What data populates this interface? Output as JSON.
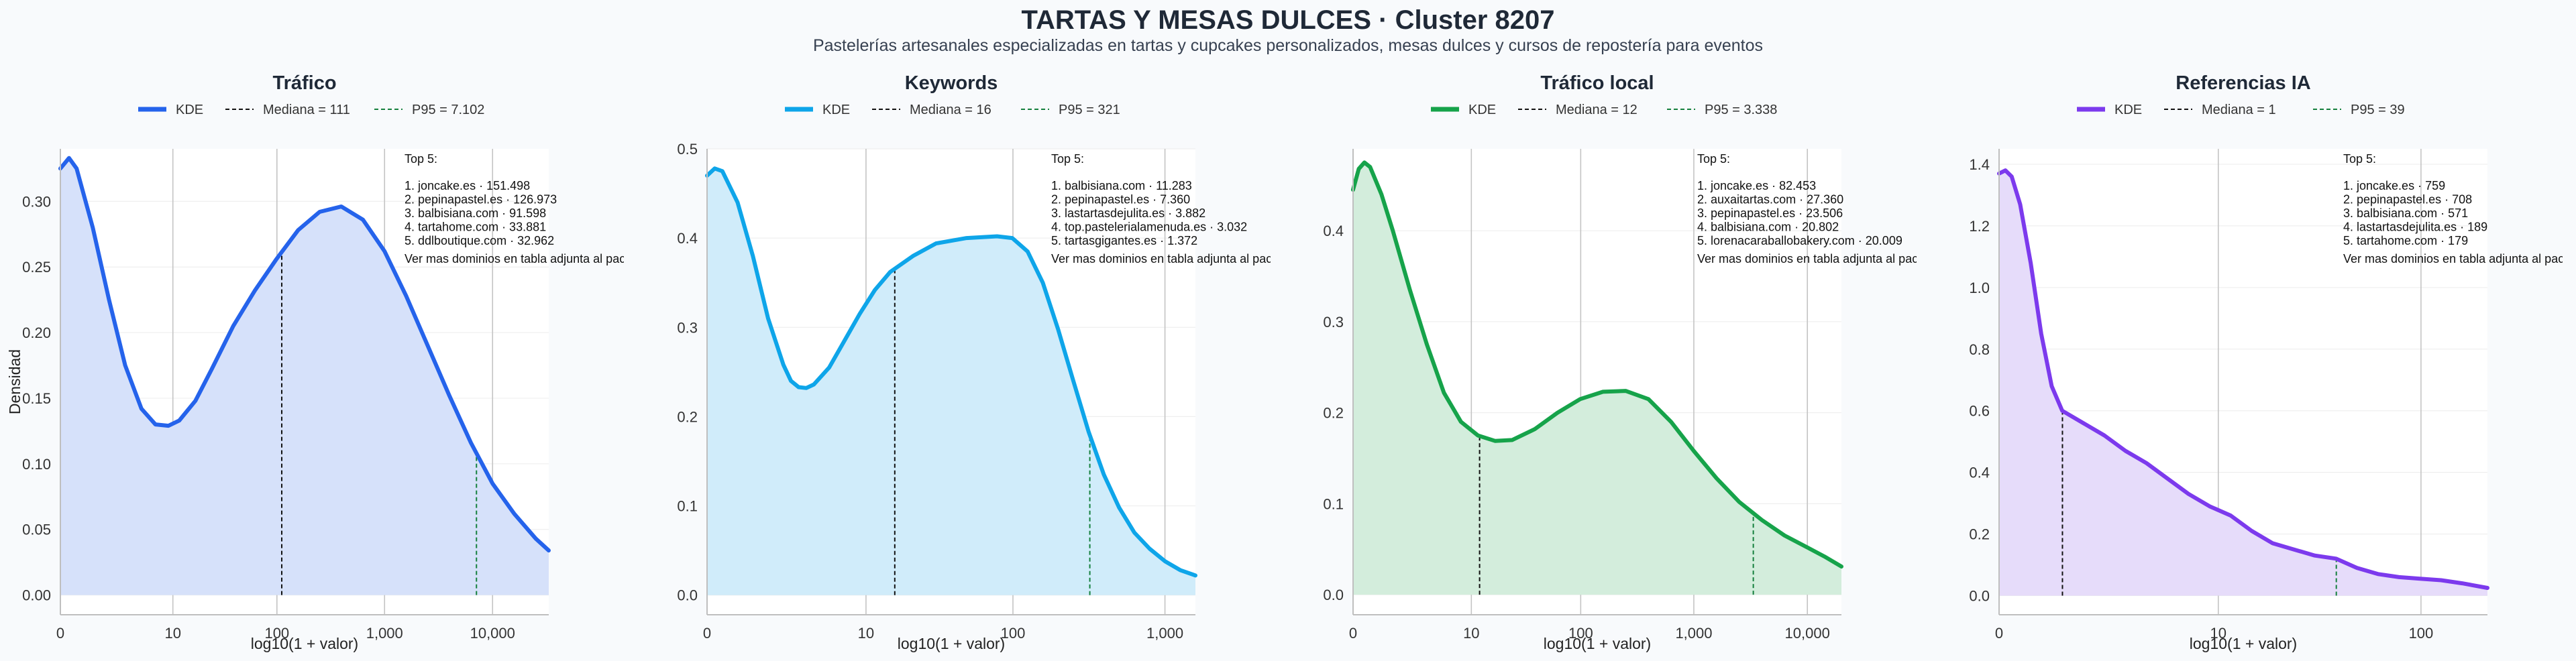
{
  "header": {
    "title": "TARTAS Y MESAS DULCES · Cluster 8207",
    "subtitle": "Pastelerías artesanales especializadas en tartas y cupcakes personalizados, mesas dulces y cursos de repostería para eventos"
  },
  "colors": {
    "page_bg": "#f8fafc",
    "median_line": "#111111",
    "p95_line": "#15803d"
  },
  "shared": {
    "ylabel": "Densidad",
    "xlabel": "log10(1 + valor)",
    "legend_kde": "KDE",
    "top_heading": "Top 5:",
    "footer_note": "Ver mas dominios en tabla adjunta al pack"
  },
  "chart_data": [
    {
      "type": "area",
      "title": "Tráfico",
      "color": "#2563eb",
      "fill": "#d6e1fa",
      "xlabel": "log10(1 + valor)",
      "ylabel": "Densidad",
      "xlim": [
        0,
        4.52
      ],
      "ylim": [
        -0.015,
        0.34
      ],
      "yticks": [
        0.0,
        0.05,
        0.1,
        0.15,
        0.2,
        0.25,
        0.3
      ],
      "ytick_labels": [
        "0.00",
        "0.05",
        "0.10",
        "0.15",
        "0.20",
        "0.25",
        "0.30"
      ],
      "xticks": [
        0,
        1.0414,
        2.0043,
        3.0004,
        4.0
      ],
      "xtick_labels": [
        "0",
        "10",
        "100",
        "1,000",
        "10,000"
      ],
      "median": {
        "label": "Mediana = 111",
        "value": 111,
        "x": 2.049
      },
      "p95": {
        "label": "P95 = 7.102",
        "value": 7102,
        "x": 3.851
      },
      "top5": [
        "1. joncake.es · 151.498",
        "2. pepinapastel.es · 126.973",
        "3. balbisiana.com · 91.598",
        "4. tartahome.com · 33.881",
        "5. ddlboutique.com · 32.962"
      ],
      "kde": [
        [
          0,
          0.325
        ],
        [
          0.08,
          0.333
        ],
        [
          0.15,
          0.325
        ],
        [
          0.3,
          0.28
        ],
        [
          0.45,
          0.225
        ],
        [
          0.6,
          0.175
        ],
        [
          0.75,
          0.142
        ],
        [
          0.88,
          0.13
        ],
        [
          1.0,
          0.129
        ],
        [
          1.1,
          0.133
        ],
        [
          1.25,
          0.148
        ],
        [
          1.4,
          0.172
        ],
        [
          1.6,
          0.205
        ],
        [
          1.8,
          0.232
        ],
        [
          2.0,
          0.256
        ],
        [
          2.2,
          0.278
        ],
        [
          2.4,
          0.292
        ],
        [
          2.6,
          0.296
        ],
        [
          2.8,
          0.286
        ],
        [
          3.0,
          0.262
        ],
        [
          3.2,
          0.228
        ],
        [
          3.4,
          0.19
        ],
        [
          3.6,
          0.152
        ],
        [
          3.8,
          0.116
        ],
        [
          4.0,
          0.085
        ],
        [
          4.2,
          0.062
        ],
        [
          4.4,
          0.043
        ],
        [
          4.52,
          0.034
        ]
      ]
    },
    {
      "type": "area",
      "title": "Keywords",
      "color": "#0ea5e9",
      "fill": "#d0ecfa",
      "xlabel": "log10(1 + valor)",
      "ylabel": "",
      "xlim": [
        0,
        3.2
      ],
      "ylim": [
        -0.022,
        0.5
      ],
      "yticks": [
        0.0,
        0.1,
        0.2,
        0.3,
        0.4,
        0.5
      ],
      "ytick_labels": [
        "0.0",
        "0.1",
        "0.2",
        "0.3",
        "0.4",
        "0.5"
      ],
      "xticks": [
        0,
        1.0414,
        2.0043,
        3.0004
      ],
      "xtick_labels": [
        "0",
        "10",
        "100",
        "1,000"
      ],
      "median": {
        "label": "Mediana = 16",
        "value": 16,
        "x": 1.23
      },
      "p95": {
        "label": "P95 = 321",
        "value": 321,
        "x": 2.508
      },
      "top5": [
        "1. balbisiana.com · 11.283",
        "2. pepinapastel.es · 7.360",
        "3. lastartasdejulita.es · 3.882",
        "4. top.pastelerialamenuda.es · 3.032",
        "5. tartasgigantes.es · 1.372"
      ],
      "kde": [
        [
          0,
          0.47
        ],
        [
          0.05,
          0.478
        ],
        [
          0.1,
          0.475
        ],
        [
          0.2,
          0.44
        ],
        [
          0.3,
          0.38
        ],
        [
          0.4,
          0.31
        ],
        [
          0.5,
          0.258
        ],
        [
          0.55,
          0.24
        ],
        [
          0.6,
          0.233
        ],
        [
          0.65,
          0.232
        ],
        [
          0.7,
          0.236
        ],
        [
          0.8,
          0.255
        ],
        [
          0.9,
          0.285
        ],
        [
          1.0,
          0.315
        ],
        [
          1.1,
          0.342
        ],
        [
          1.2,
          0.362
        ],
        [
          1.35,
          0.38
        ],
        [
          1.5,
          0.394
        ],
        [
          1.7,
          0.4
        ],
        [
          1.9,
          0.402
        ],
        [
          2.0,
          0.4
        ],
        [
          2.1,
          0.385
        ],
        [
          2.2,
          0.35
        ],
        [
          2.3,
          0.298
        ],
        [
          2.4,
          0.24
        ],
        [
          2.5,
          0.183
        ],
        [
          2.6,
          0.135
        ],
        [
          2.7,
          0.098
        ],
        [
          2.8,
          0.07
        ],
        [
          2.9,
          0.052
        ],
        [
          3.0,
          0.038
        ],
        [
          3.1,
          0.028
        ],
        [
          3.2,
          0.022
        ]
      ]
    },
    {
      "type": "area",
      "title": "Tráfico local",
      "color": "#16a34a",
      "fill": "#d3eddc",
      "xlabel": "log10(1 + valor)",
      "ylabel": "",
      "xlim": [
        0,
        4.3
      ],
      "ylim": [
        -0.022,
        0.49
      ],
      "yticks": [
        0.0,
        0.1,
        0.2,
        0.3,
        0.4
      ],
      "ytick_labels": [
        "0.0",
        "0.1",
        "0.2",
        "0.3",
        "0.4"
      ],
      "xticks": [
        0,
        1.0414,
        2.0043,
        3.0004,
        4.0
      ],
      "xtick_labels": [
        "0",
        "10",
        "100",
        "1,000",
        "10,000"
      ],
      "median": {
        "label": "Mediana = 12",
        "value": 12,
        "x": 1.114
      },
      "p95": {
        "label": "P95 = 3.338",
        "value": 3338,
        "x": 3.524
      },
      "top5": [
        "1. joncake.es · 82.453",
        "2. auxaitartas.com · 27.360",
        "3. pepinapastel.es · 23.506",
        "4. balbisiana.com · 20.802",
        "5. lorenacaraballobakery.com · 20.009"
      ],
      "kde": [
        [
          0,
          0.445
        ],
        [
          0.05,
          0.468
        ],
        [
          0.1,
          0.475
        ],
        [
          0.15,
          0.47
        ],
        [
          0.25,
          0.44
        ],
        [
          0.35,
          0.4
        ],
        [
          0.5,
          0.335
        ],
        [
          0.65,
          0.275
        ],
        [
          0.8,
          0.222
        ],
        [
          0.95,
          0.19
        ],
        [
          1.1,
          0.175
        ],
        [
          1.25,
          0.169
        ],
        [
          1.4,
          0.17
        ],
        [
          1.6,
          0.182
        ],
        [
          1.8,
          0.2
        ],
        [
          2.0,
          0.215
        ],
        [
          2.2,
          0.223
        ],
        [
          2.4,
          0.224
        ],
        [
          2.6,
          0.215
        ],
        [
          2.8,
          0.19
        ],
        [
          3.0,
          0.158
        ],
        [
          3.2,
          0.128
        ],
        [
          3.4,
          0.102
        ],
        [
          3.6,
          0.082
        ],
        [
          3.8,
          0.065
        ],
        [
          4.0,
          0.052
        ],
        [
          4.15,
          0.042
        ],
        [
          4.3,
          0.031
        ]
      ]
    },
    {
      "type": "area",
      "title": "Referencias IA",
      "color": "#7c3aed",
      "fill": "#e6dcfa",
      "xlabel": "log10(1 + valor)",
      "ylabel": "",
      "xlim": [
        0,
        2.32
      ],
      "ylim": [
        -0.062,
        1.45
      ],
      "yticks": [
        0.0,
        0.2,
        0.4,
        0.6,
        0.8,
        1.0,
        1.2,
        1.4
      ],
      "ytick_labels": [
        "0.0",
        "0.2",
        "0.4",
        "0.6",
        "0.8",
        "1.0",
        "1.2",
        "1.4"
      ],
      "xticks": [
        0,
        1.0414,
        2.0043
      ],
      "xtick_labels": [
        "0",
        "10",
        "100"
      ],
      "median": {
        "label": "Mediana = 1",
        "value": 1,
        "x": 0.301
      },
      "p95": {
        "label": "P95 = 39",
        "value": 39,
        "x": 1.602
      },
      "top5": [
        "1. joncake.es · 759",
        "2. pepinapastel.es · 708",
        "3. balbisiana.com · 571",
        "4. lastartasdejulita.es · 189",
        "5. tartahome.com · 179"
      ],
      "kde": [
        [
          0,
          1.37
        ],
        [
          0.03,
          1.38
        ],
        [
          0.06,
          1.36
        ],
        [
          0.1,
          1.27
        ],
        [
          0.15,
          1.08
        ],
        [
          0.2,
          0.85
        ],
        [
          0.25,
          0.68
        ],
        [
          0.3,
          0.6
        ],
        [
          0.4,
          0.56
        ],
        [
          0.5,
          0.52
        ],
        [
          0.6,
          0.47
        ],
        [
          0.7,
          0.43
        ],
        [
          0.8,
          0.38
        ],
        [
          0.9,
          0.33
        ],
        [
          1.0,
          0.29
        ],
        [
          1.1,
          0.26
        ],
        [
          1.2,
          0.21
        ],
        [
          1.3,
          0.17
        ],
        [
          1.4,
          0.15
        ],
        [
          1.5,
          0.13
        ],
        [
          1.6,
          0.12
        ],
        [
          1.7,
          0.09
        ],
        [
          1.8,
          0.07
        ],
        [
          1.9,
          0.06
        ],
        [
          2.0,
          0.055
        ],
        [
          2.1,
          0.05
        ],
        [
          2.2,
          0.04
        ],
        [
          2.32,
          0.025
        ]
      ]
    }
  ]
}
